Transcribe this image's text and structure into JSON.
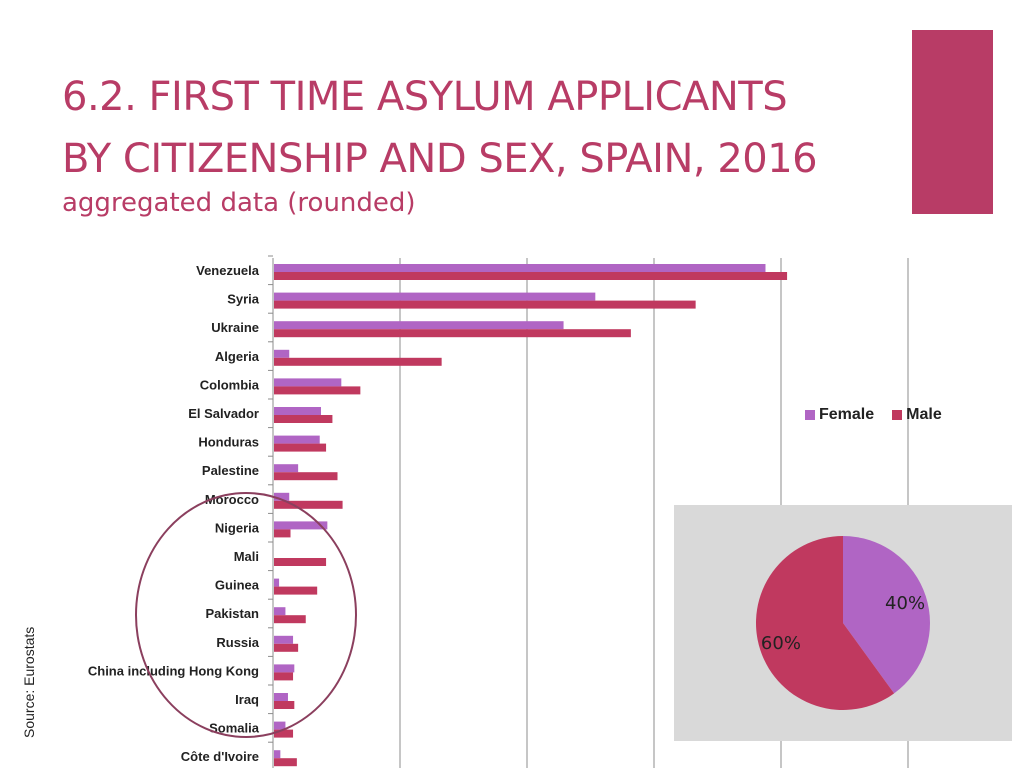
{
  "page": {
    "title_line1": "6.2. FIRST TIME ASYLUM APPLICANTS",
    "title_line2": "BY CITIZENSHIP AND SEX, SPAIN, 2016",
    "subtitle": "aggregated data (rounded)",
    "source": "Source: Eurostats"
  },
  "colors": {
    "accent": "#b83c66",
    "female": "#b065c4",
    "male": "#c0395f",
    "panel": "#d9d9d9",
    "circle": "#8b3f5e"
  },
  "chart_data": [
    {
      "type": "bar",
      "orientation": "horizontal",
      "categories": [
        "Venezuela",
        "Syria",
        "Ukraine",
        "Algeria",
        "Colombia",
        "El Salvador",
        "Honduras",
        "Palestine",
        "Morocco",
        "Nigeria",
        "Mali",
        "Guinea",
        "Pakistan",
        "Russia",
        "China including Hong Kong",
        "Iraq",
        "Somalia",
        "Côte d'Ivoire"
      ],
      "series": [
        {
          "name": "Female",
          "values": [
            3870,
            2530,
            2280,
            120,
            530,
            370,
            360,
            190,
            120,
            420,
            0,
            40,
            90,
            150,
            160,
            110,
            90,
            50
          ]
        },
        {
          "name": "Male",
          "values": [
            4040,
            3320,
            2810,
            1320,
            680,
            460,
            410,
            500,
            540,
            130,
            410,
            340,
            250,
            190,
            150,
            160,
            150,
            180
          ]
        }
      ],
      "xlim": [
        0,
        5000
      ],
      "grid": true,
      "legend": "right",
      "annotation": "circle around Nigeria–Somalia"
    },
    {
      "type": "pie",
      "labels": [
        "Female",
        "Male"
      ],
      "values": [
        40,
        60
      ],
      "data_labels": [
        "40%",
        "60%"
      ]
    }
  ]
}
